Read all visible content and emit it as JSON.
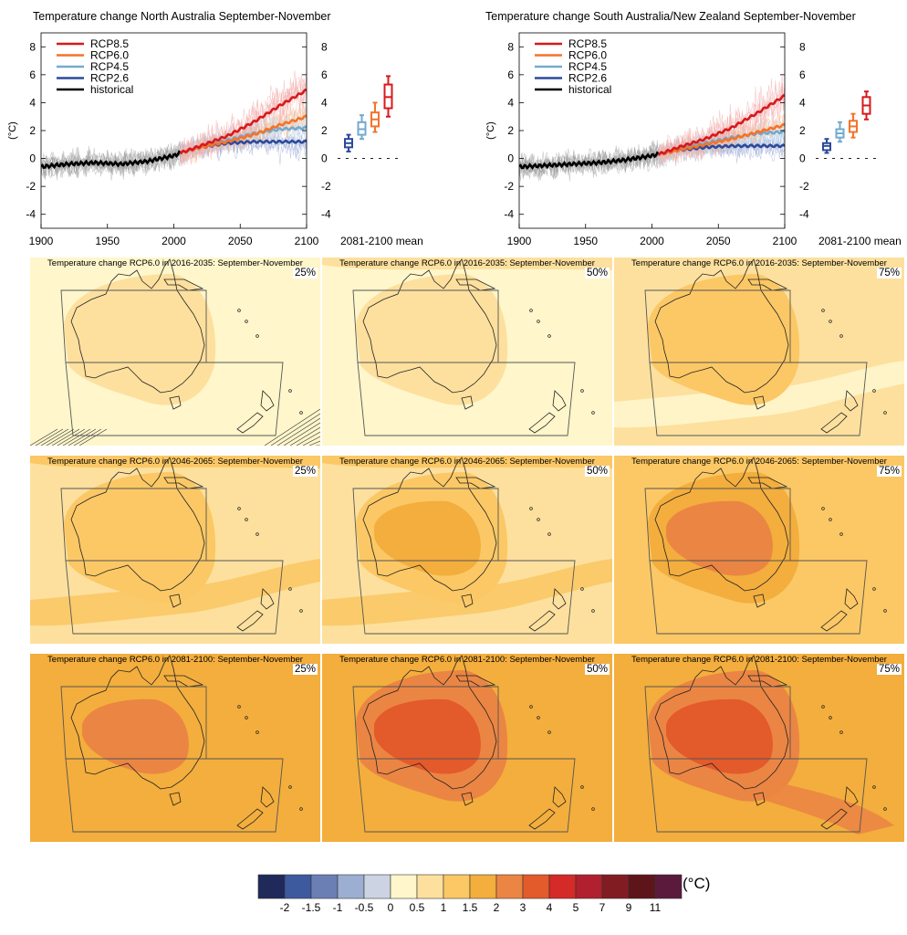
{
  "colors": {
    "rcp85": "#d7191c",
    "rcp60": "#f4732a",
    "rcp45": "#74a9cf",
    "rcp26": "#2c4a9a",
    "historical": "#000000"
  },
  "charts": [
    {
      "title": "Temperature change North Australia September-November",
      "ylabel": "(°C)",
      "box_label": "2081-2100 mean"
    },
    {
      "title": "Temperature change South Australia/New Zealand September-November",
      "ylabel": "(°C)",
      "box_label": "2081-2100 mean"
    }
  ],
  "legend": [
    "RCP8.5",
    "RCP6.0",
    "RCP4.5",
    "RCP2.6",
    "historical"
  ],
  "chart_data": [
    {
      "type": "line",
      "title": "Temperature change North Australia September-November",
      "ylabel": "(°C)",
      "xlim": [
        1900,
        2100
      ],
      "ylim": [
        -5,
        9
      ],
      "x_ticks": [
        1900,
        1950,
        2000,
        2050,
        2100
      ],
      "y_ticks": [
        -4,
        -2,
        0,
        2,
        4,
        6,
        8
      ],
      "legend_position": "top-left",
      "series": [
        {
          "name": "historical",
          "x": [
            1900,
            1920,
            1940,
            1960,
            1980,
            2000,
            2005
          ],
          "y": [
            -0.6,
            -0.4,
            -0.3,
            -0.4,
            -0.2,
            0.2,
            0.4
          ]
        },
        {
          "name": "RCP2.6",
          "x": [
            2005,
            2020,
            2040,
            2060,
            2080,
            2100
          ],
          "y": [
            0.4,
            0.8,
            1.1,
            1.2,
            1.2,
            1.2
          ]
        },
        {
          "name": "RCP4.5",
          "x": [
            2005,
            2020,
            2040,
            2060,
            2080,
            2100
          ],
          "y": [
            0.4,
            0.8,
            1.3,
            1.8,
            2.1,
            2.2
          ]
        },
        {
          "name": "RCP6.0",
          "x": [
            2005,
            2020,
            2040,
            2060,
            2080,
            2100
          ],
          "y": [
            0.4,
            0.8,
            1.2,
            1.7,
            2.4,
            3.0
          ]
        },
        {
          "name": "RCP8.5",
          "x": [
            2005,
            2020,
            2040,
            2060,
            2080,
            2100
          ],
          "y": [
            0.4,
            0.9,
            1.6,
            2.6,
            3.8,
            4.9
          ]
        }
      ],
      "boxes_2081_2100": [
        {
          "name": "RCP2.6",
          "min": 0.5,
          "q1": 0.8,
          "median": 1.1,
          "q3": 1.4,
          "max": 1.7
        },
        {
          "name": "RCP4.5",
          "min": 1.4,
          "q1": 1.7,
          "median": 2.1,
          "q3": 2.6,
          "max": 3.1
        },
        {
          "name": "RCP6.0",
          "min": 1.9,
          "q1": 2.3,
          "median": 2.8,
          "q3": 3.3,
          "max": 4.0
        },
        {
          "name": "RCP8.5",
          "min": 3.0,
          "q1": 3.6,
          "median": 4.4,
          "q3": 5.3,
          "max": 5.9
        }
      ]
    },
    {
      "type": "line",
      "title": "Temperature change South Australia/New Zealand September-November",
      "ylabel": "(°C)",
      "xlim": [
        1900,
        2100
      ],
      "ylim": [
        -5,
        9
      ],
      "x_ticks": [
        1900,
        1950,
        2000,
        2050,
        2100
      ],
      "y_ticks": [
        -4,
        -2,
        0,
        2,
        4,
        6,
        8
      ],
      "legend_position": "top-left",
      "series": [
        {
          "name": "historical",
          "x": [
            1900,
            1920,
            1940,
            1960,
            1980,
            2000,
            2005
          ],
          "y": [
            -0.6,
            -0.5,
            -0.4,
            -0.3,
            -0.1,
            0.2,
            0.3
          ]
        },
        {
          "name": "RCP2.6",
          "x": [
            2005,
            2020,
            2040,
            2060,
            2080,
            2100
          ],
          "y": [
            0.3,
            0.6,
            0.8,
            0.9,
            0.9,
            0.9
          ]
        },
        {
          "name": "RCP4.5",
          "x": [
            2005,
            2020,
            2040,
            2060,
            2080,
            2100
          ],
          "y": [
            0.3,
            0.7,
            1.1,
            1.5,
            1.8,
            1.9
          ]
        },
        {
          "name": "RCP6.0",
          "x": [
            2005,
            2020,
            2040,
            2060,
            2080,
            2100
          ],
          "y": [
            0.3,
            0.6,
            1.0,
            1.4,
            1.9,
            2.4
          ]
        },
        {
          "name": "RCP8.5",
          "x": [
            2005,
            2020,
            2040,
            2060,
            2080,
            2100
          ],
          "y": [
            0.3,
            0.8,
            1.4,
            2.2,
            3.3,
            4.5
          ]
        }
      ],
      "boxes_2081_2100": [
        {
          "name": "RCP2.6",
          "min": 0.4,
          "q1": 0.6,
          "median": 0.9,
          "q3": 1.1,
          "max": 1.4
        },
        {
          "name": "RCP4.5",
          "min": 1.2,
          "q1": 1.5,
          "median": 1.8,
          "q3": 2.1,
          "max": 2.6
        },
        {
          "name": "RCP6.0",
          "min": 1.5,
          "q1": 1.9,
          "median": 2.3,
          "q3": 2.7,
          "max": 3.2
        },
        {
          "name": "RCP8.5",
          "min": 2.8,
          "q1": 3.2,
          "median": 3.8,
          "q3": 4.4,
          "max": 4.8
        }
      ]
    },
    {
      "type": "heatmap",
      "colorbar": {
        "unit": "(°C)",
        "tick_labels": [
          "-2",
          "-1.5",
          "-1",
          "-0.5",
          "0",
          "0.5",
          "1",
          "1.5",
          "2",
          "3",
          "4",
          "5",
          "7",
          "9",
          "11"
        ],
        "colors": [
          "#1f2a5a",
          "#3e5a9f",
          "#6b7fb5",
          "#9caed1",
          "#ccd4e3",
          "#fff6cb",
          "#fde09e",
          "#fbc865",
          "#f3ae3d",
          "#eb8543",
          "#e35a2b",
          "#d42a28",
          "#b0202e",
          "#821c23",
          "#5e1519",
          "#5b1a3c"
        ]
      },
      "maps": [
        {
          "title": "Temperature change RCP6.0 in 2016-2035: September-November",
          "percentile": "25%"
        },
        {
          "title": "Temperature change RCP6.0 in 2016-2035: September-November",
          "percentile": "50%"
        },
        {
          "title": "Temperature change RCP6.0 in 2016-2035: September-November",
          "percentile": "75%"
        },
        {
          "title": "Temperature change RCP6.0 in 2046-2065: September-November",
          "percentile": "25%"
        },
        {
          "title": "Temperature change RCP6.0 in 2046-2065: September-November",
          "percentile": "50%"
        },
        {
          "title": "Temperature change RCP6.0 in 2046-2065: September-November",
          "percentile": "75%"
        },
        {
          "title": "Temperature change RCP6.0 in 2081-2100: September-November",
          "percentile": "25%"
        },
        {
          "title": "Temperature change RCP6.0 in 2081-2100: September-November",
          "percentile": "50%"
        },
        {
          "title": "Temperature change RCP6.0 in 2081-2100: September-November",
          "percentile": "75%"
        }
      ]
    }
  ]
}
